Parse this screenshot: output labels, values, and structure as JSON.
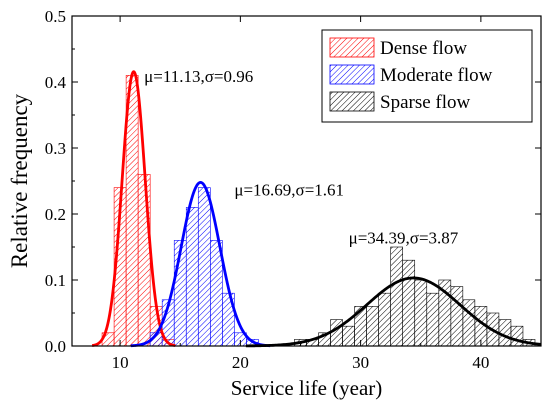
{
  "chart_data": {
    "type": "bar",
    "title": "",
    "xlabel": "Service life (year)",
    "ylabel": "Relative frequency",
    "xlim": [
      6,
      45
    ],
    "ylim": [
      0,
      0.5
    ],
    "xticks": [
      10,
      20,
      30,
      40
    ],
    "yticks": [
      0.0,
      0.1,
      0.2,
      0.3,
      0.4,
      0.5
    ],
    "ytick_labels": [
      "0.0",
      "0.1",
      "0.2",
      "0.3",
      "0.4",
      "0.5"
    ],
    "grid": false,
    "legend_position": "top-right",
    "series": [
      {
        "name": "Dense flow",
        "color": "#ff0000",
        "bin_width": 1,
        "bins": [
          {
            "x": 9,
            "y": 0.02
          },
          {
            "x": 10,
            "y": 0.24
          },
          {
            "x": 11,
            "y": 0.41
          },
          {
            "x": 12,
            "y": 0.26
          },
          {
            "x": 13,
            "y": 0.06
          },
          {
            "x": 14,
            "y": 0.01
          }
        ],
        "fit": {
          "mu": 11.13,
          "sigma": 0.96,
          "label": "μ=11.13,σ=0.96",
          "annotation_x": 12.0,
          "annotation_y": 0.4
        }
      },
      {
        "name": "Moderate flow",
        "color": "#0000ff",
        "bin_width": 1,
        "bins": [
          {
            "x": 13,
            "y": 0.02
          },
          {
            "x": 14,
            "y": 0.07
          },
          {
            "x": 15,
            "y": 0.16
          },
          {
            "x": 16,
            "y": 0.21
          },
          {
            "x": 17,
            "y": 0.24
          },
          {
            "x": 18,
            "y": 0.16
          },
          {
            "x": 19,
            "y": 0.08
          },
          {
            "x": 20,
            "y": 0.02
          },
          {
            "x": 21,
            "y": 0.01
          }
        ],
        "fit": {
          "mu": 16.69,
          "sigma": 1.61,
          "label": "μ=16.69,σ=1.61",
          "annotation_x": 19.5,
          "annotation_y": 0.228
        }
      },
      {
        "name": "Sparse flow",
        "color": "#000000",
        "bin_width": 1,
        "bins": [
          {
            "x": 25,
            "y": 0.01
          },
          {
            "x": 26,
            "y": 0.01
          },
          {
            "x": 27,
            "y": 0.02
          },
          {
            "x": 28,
            "y": 0.04
          },
          {
            "x": 29,
            "y": 0.03
          },
          {
            "x": 30,
            "y": 0.06
          },
          {
            "x": 31,
            "y": 0.06
          },
          {
            "x": 32,
            "y": 0.08
          },
          {
            "x": 33,
            "y": 0.15
          },
          {
            "x": 34,
            "y": 0.13
          },
          {
            "x": 35,
            "y": 0.1
          },
          {
            "x": 36,
            "y": 0.08
          },
          {
            "x": 37,
            "y": 0.1
          },
          {
            "x": 38,
            "y": 0.09
          },
          {
            "x": 39,
            "y": 0.07
          },
          {
            "x": 40,
            "y": 0.06
          },
          {
            "x": 41,
            "y": 0.05
          },
          {
            "x": 42,
            "y": 0.04
          },
          {
            "x": 43,
            "y": 0.03
          },
          {
            "x": 44,
            "y": 0.01
          }
        ],
        "fit": {
          "mu": 34.39,
          "sigma": 3.87,
          "label": "μ=34.39,σ=3.87",
          "annotation_x": 29.0,
          "annotation_y": 0.155
        }
      }
    ]
  }
}
